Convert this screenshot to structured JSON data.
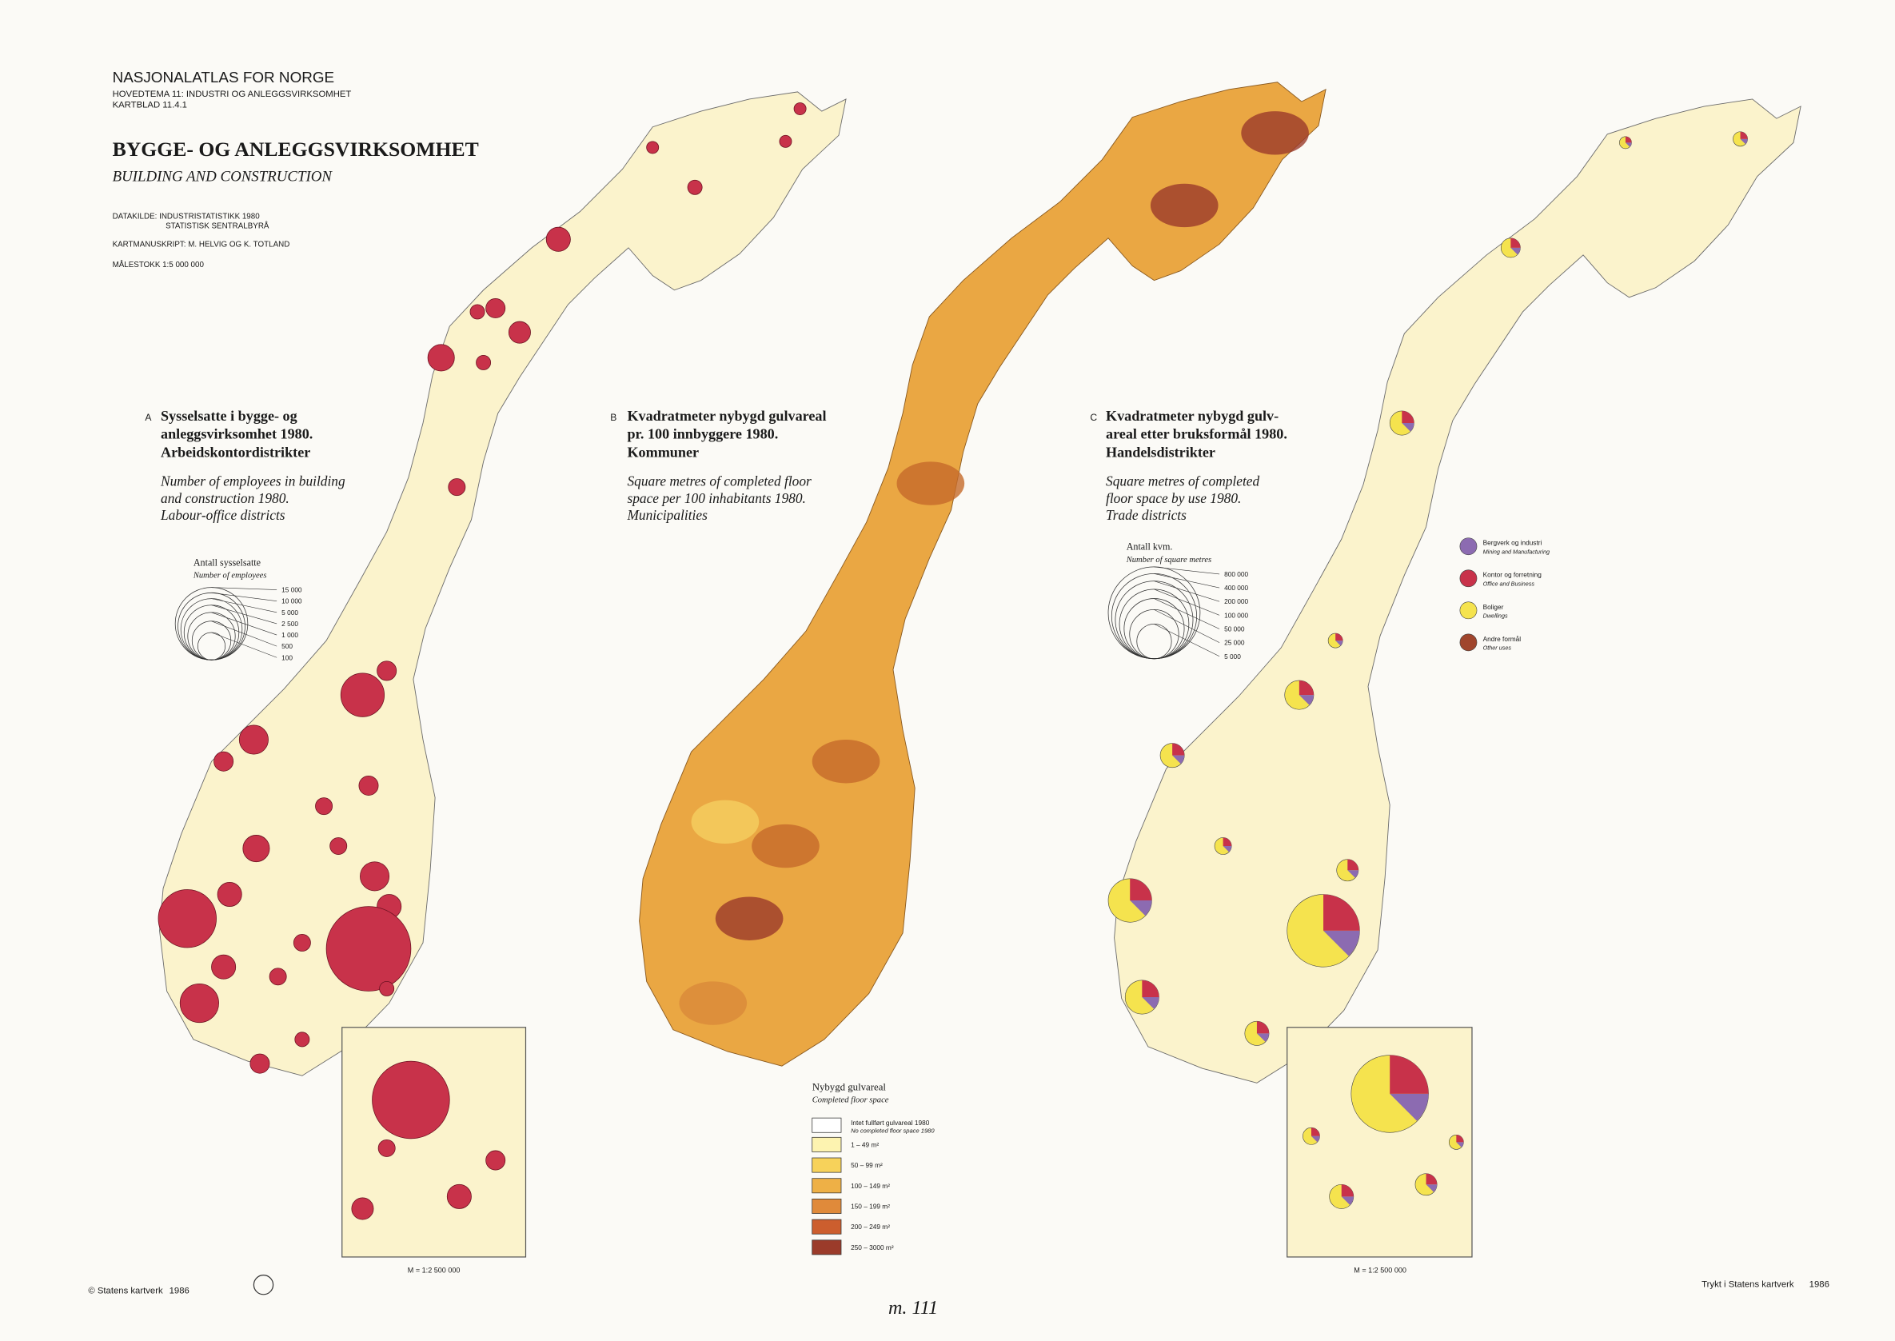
{
  "header": {
    "atlas": "NASJONALATLAS FOR NORGE",
    "theme": "HOVEDTEMA 11: INDUSTRI OG ANLEGGSVIRKSOMHET",
    "sheet": "KARTBLAD 11.4.1",
    "title": "BYGGE- OG ANLEGGSVIRKSOMHET",
    "subtitle": "BUILDING AND CONSTRUCTION",
    "source": [
      "DATAKILDE: INDUSTRISTATISTIKK 1980",
      "STATISTISK SENTRALBYRÅ"
    ],
    "manuscript": "KARTMANUSKRIPT: M. HELVIG OG K. TOTLAND",
    "scale": "MÅLESTOKK 1:5 000 000"
  },
  "maps": [
    {
      "letter": "A",
      "title": [
        "Sysselsatte i bygge- og",
        "anleggsvirksomhet 1980.",
        "Arbeidskontordistrikter"
      ],
      "subtitle": [
        "Number of employees in building",
        "and construction 1980.",
        "Labour-office districts"
      ],
      "legend": {
        "title": "Antall sysselsatte",
        "subtitle": "Number of employees",
        "items": [
          "15 000",
          "10 000",
          "5 000",
          "2 500",
          "1 000",
          "500",
          "100"
        ]
      },
      "inset_scale": "M = 1:2 500 000"
    },
    {
      "letter": "B",
      "title": [
        "Kvadratmeter nybygd gulvareal",
        "pr. 100 innbyggere 1980.",
        "Kommuner"
      ],
      "subtitle": [
        "Square metres of completed floor",
        "space per 100 inhabitants 1980.",
        "Municipalities"
      ],
      "legend": {
        "title": "Nybygd gulvareal",
        "subtitle": "Completed floor space",
        "none": [
          "Intet fullført gulvareal 1980",
          "No completed floor space 1980"
        ],
        "items": [
          "1 –  49 m²",
          "50 –  99 m²",
          "100 – 149 m²",
          "150 – 199 m²",
          "200 – 249 m²",
          "250 – 3000 m²"
        ]
      }
    },
    {
      "letter": "C",
      "title": [
        "Kvadratmeter nybygd gulv-",
        "areal etter bruksformål 1980.",
        "Handelsdistrikter"
      ],
      "subtitle": [
        "Square metres of completed",
        "floor space by use 1980.",
        "Trade districts"
      ],
      "legend": {
        "title": "Antall kvm.",
        "subtitle": "Number of square metres",
        "items": [
          "800 000",
          "400 000",
          "200 000",
          "100 000",
          "50 000",
          "25 000",
          "5 000"
        ]
      },
      "uses": [
        [
          "Bergverk og industri",
          "Mining and Manufacturing"
        ],
        [
          "Kontor og forretning",
          "Office and Business"
        ],
        [
          "Boliger",
          "Dwellings"
        ],
        [
          "Andre formål",
          "Other uses"
        ]
      ],
      "inset_scale": "M = 1:2 500 000"
    }
  ],
  "footer": {
    "left": "© Statens kartverk",
    "left_year": "1986",
    "right": "Trykt i Statens kartverk",
    "right_year": "1986",
    "note": "m. 111"
  }
}
